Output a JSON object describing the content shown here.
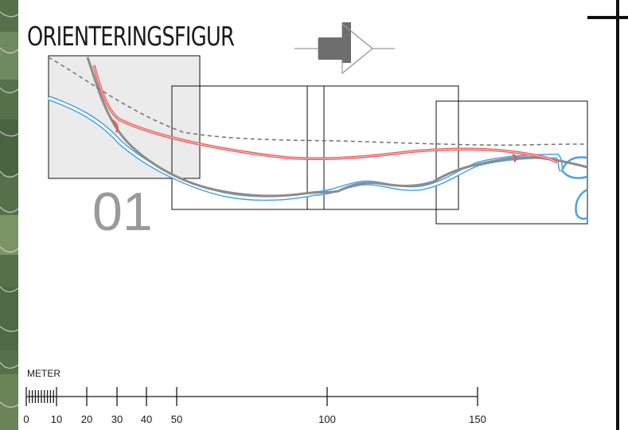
{
  "title": "ORIENTERINGSFIGUR",
  "sheet_number": "01",
  "colors": {
    "road_proposed": "#e85a5a",
    "road_existing": "#8c8c8c",
    "water": "#4aa3e8",
    "dashed_line": "#707070",
    "highlight_sheet_fill": "#ebebeb",
    "frame": "#111111"
  },
  "scale_bar": {
    "unit": "METER",
    "ticks": [
      "0",
      "10",
      "20",
      "30",
      "40",
      "50",
      "100",
      "150"
    ]
  }
}
